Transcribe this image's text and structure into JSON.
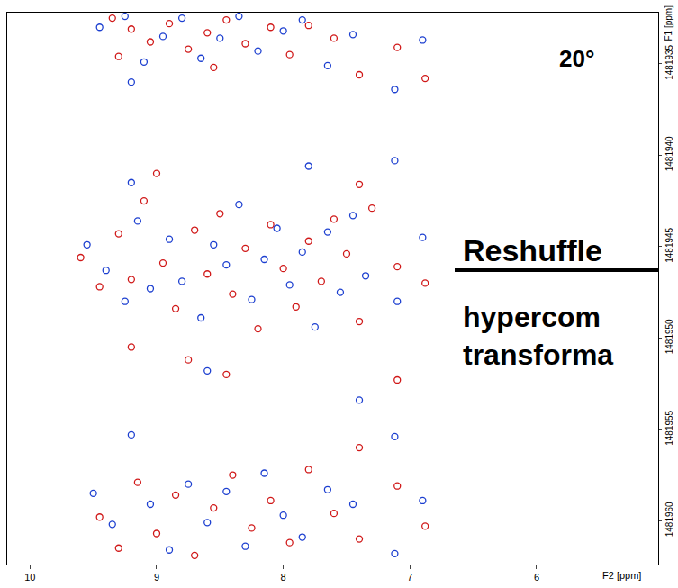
{
  "chart_data": {
    "type": "scatter",
    "x_label": "F2 [ppm]",
    "y_label": "F1 [ppm]",
    "xlim": [
      10.18,
      5.04
    ],
    "ylim": [
      1481962.4,
      1481932.2
    ],
    "xticks": [
      10,
      9,
      8,
      7,
      6
    ],
    "yticks": [
      1481935,
      1481940,
      1481945,
      1481950,
      1481955,
      1481960
    ],
    "grid": false,
    "marker": "circle-open",
    "annotations": [
      "20°",
      "Reshuffle",
      "hypercom",
      "transforma"
    ],
    "series": [
      {
        "color": "#d01818",
        "x": [
          9.35,
          9.2,
          9.05,
          8.9,
          8.75,
          8.6,
          8.45,
          8.3,
          8.1,
          7.95,
          7.8,
          7.6,
          7.4,
          7.1,
          6.88,
          9.3,
          8.55,
          9.6,
          9.45,
          9.3,
          9.2,
          9.1,
          8.95,
          8.85,
          8.7,
          8.6,
          8.5,
          8.4,
          8.3,
          8.2,
          8.1,
          8.0,
          7.9,
          7.8,
          7.7,
          7.6,
          7.5,
          7.4,
          7.3,
          7.1,
          6.88,
          9.2,
          8.75,
          8.45,
          7.4,
          7.1,
          9.0,
          9.45,
          9.3,
          9.15,
          9.0,
          8.85,
          8.7,
          8.55,
          8.4,
          8.25,
          8.1,
          7.95,
          7.8,
          7.6,
          7.4,
          7.1,
          6.88,
          7.4
        ],
        "y": [
          1481932.5,
          1481933.1,
          1481933.8,
          1481932.8,
          1481934.2,
          1481933.3,
          1481932.6,
          1481933.9,
          1481933.0,
          1481934.5,
          1481932.9,
          1481933.6,
          1481935.6,
          1481934.1,
          1481935.8,
          1481934.6,
          1481935.2,
          1481945.6,
          1481947.2,
          1481944.3,
          1481946.8,
          1481942.5,
          1481945.9,
          1481948.4,
          1481944.1,
          1481946.5,
          1481943.2,
          1481947.6,
          1481945.1,
          1481949.5,
          1481943.8,
          1481946.2,
          1481948.3,
          1481944.7,
          1481946.9,
          1481943.5,
          1481945.4,
          1481949.1,
          1481942.9,
          1481946.1,
          1481947.0,
          1481950.5,
          1481951.2,
          1481952.0,
          1481941.6,
          1481952.3,
          1481941.0,
          1481959.8,
          1481961.5,
          1481957.9,
          1481960.7,
          1481958.6,
          1481961.9,
          1481959.3,
          1481957.5,
          1481960.4,
          1481958.9,
          1481961.2,
          1481957.2,
          1481959.6,
          1481961.0,
          1481958.1,
          1481960.3,
          1481956.0
        ]
      },
      {
        "color": "#1c3fd0",
        "x": [
          9.45,
          9.25,
          9.1,
          8.95,
          8.8,
          8.65,
          8.5,
          8.35,
          8.2,
          8.0,
          7.85,
          7.65,
          7.45,
          7.12,
          6.9,
          9.2,
          9.55,
          9.4,
          9.25,
          9.15,
          9.05,
          8.9,
          8.8,
          8.65,
          8.55,
          8.45,
          8.35,
          8.25,
          8.15,
          8.05,
          7.95,
          7.85,
          7.75,
          7.65,
          7.55,
          7.45,
          7.35,
          7.12,
          7.1,
          6.9,
          9.2,
          8.6,
          7.8,
          7.4,
          7.12,
          9.5,
          9.35,
          9.2,
          9.05,
          8.9,
          8.75,
          8.6,
          8.45,
          8.3,
          8.15,
          8.0,
          7.85,
          7.65,
          7.45,
          7.12,
          6.9
        ],
        "y": [
          1481933.0,
          1481932.4,
          1481934.9,
          1481933.5,
          1481932.5,
          1481934.7,
          1481933.6,
          1481932.4,
          1481934.3,
          1481933.2,
          1481932.6,
          1481935.1,
          1481933.4,
          1481936.4,
          1481933.7,
          1481936.0,
          1481944.9,
          1481946.3,
          1481948.0,
          1481943.6,
          1481947.3,
          1481944.6,
          1481946.9,
          1481948.9,
          1481944.9,
          1481946.0,
          1481942.7,
          1481947.9,
          1481945.7,
          1481944.0,
          1481947.1,
          1481945.3,
          1481949.4,
          1481944.2,
          1481947.5,
          1481943.3,
          1481946.6,
          1481940.3,
          1481948.0,
          1481944.5,
          1481941.5,
          1481951.8,
          1481940.6,
          1481953.4,
          1481955.4,
          1481958.5,
          1481960.2,
          1481955.3,
          1481959.1,
          1481961.6,
          1481958.0,
          1481960.1,
          1481958.4,
          1481961.4,
          1481957.4,
          1481959.7,
          1481960.9,
          1481958.3,
          1481959.1,
          1481961.8,
          1481958.9
        ]
      }
    ]
  }
}
